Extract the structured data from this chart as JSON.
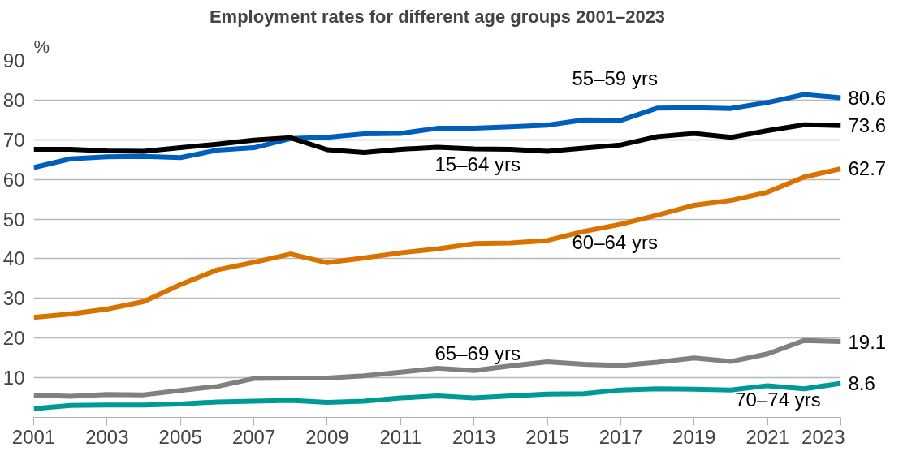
{
  "chart_data": {
    "type": "line",
    "title": "Employment rates for different age groups 2001–2023",
    "ylabel": "%",
    "x": [
      2001,
      2002,
      2003,
      2004,
      2005,
      2006,
      2007,
      2008,
      2009,
      2010,
      2011,
      2012,
      2013,
      2014,
      2015,
      2016,
      2017,
      2018,
      2019,
      2020,
      2021,
      2022,
      2023
    ],
    "series": [
      {
        "color": "#005ebc",
        "values": [
          63,
          65.2,
          65.7,
          65.8,
          65.5,
          67.4,
          68,
          70.3,
          70.6,
          71.5,
          71.6,
          72.9,
          72.9,
          73.3,
          73.7,
          75,
          74.9,
          78,
          78.1,
          77.9,
          79.4,
          81.4,
          80.6
        ],
        "value_labels": [
          null,
          null,
          null,
          null,
          null,
          null,
          null,
          null,
          null,
          null,
          null,
          null,
          null,
          null,
          null,
          null,
          null,
          null,
          null,
          null,
          null,
          null,
          "80.6"
        ]
      },
      {
        "color": "#000000",
        "values": [
          67.6,
          67.6,
          67.2,
          67.1,
          68,
          68.9,
          69.9,
          70.5,
          67.5,
          66.8,
          67.6,
          68.1,
          67.7,
          67.6,
          67.1,
          67.9,
          68.7,
          70.8,
          71.6,
          70.6,
          72.3,
          73.8,
          73.6
        ],
        "value_labels": [
          null,
          null,
          null,
          null,
          null,
          null,
          null,
          null,
          null,
          null,
          null,
          null,
          null,
          null,
          null,
          null,
          null,
          null,
          null,
          null,
          null,
          null,
          "73.6"
        ]
      },
      {
        "color": "#d97300",
        "values": [
          25.2,
          26.1,
          27.3,
          29.2,
          33.5,
          37.2,
          39.1,
          41.2,
          39,
          40.2,
          41.5,
          42.5,
          43.8,
          44,
          44.6,
          46.9,
          48.7,
          51,
          53.5,
          54.7,
          56.8,
          60.6,
          62.7
        ],
        "value_labels": [
          null,
          null,
          null,
          null,
          null,
          null,
          null,
          null,
          null,
          null,
          null,
          null,
          null,
          null,
          null,
          null,
          null,
          null,
          null,
          null,
          null,
          null,
          "62.7"
        ]
      },
      {
        "color": "#808080",
        "values": [
          5.6,
          5.3,
          5.8,
          5.7,
          6.8,
          7.8,
          9.8,
          9.9,
          9.9,
          10.5,
          11.4,
          12.4,
          11.8,
          13,
          14,
          13.4,
          13.1,
          13.9,
          15,
          14.1,
          16,
          19.4,
          19.1
        ],
        "value_labels": [
          null,
          null,
          null,
          null,
          null,
          null,
          null,
          null,
          null,
          null,
          null,
          null,
          null,
          null,
          null,
          null,
          null,
          null,
          null,
          null,
          null,
          null,
          "19.1"
        ]
      },
      {
        "color": "#009a96",
        "values": [
          2.2,
          3,
          3.1,
          3.1,
          3.4,
          3.9,
          4.1,
          4.3,
          3.8,
          4.1,
          4.9,
          5.4,
          4.9,
          5.4,
          5.9,
          6,
          6.9,
          7.2,
          7.1,
          6.9,
          8,
          7.2,
          8.6
        ],
        "value_labels": [
          null,
          null,
          null,
          null,
          null,
          null,
          null,
          null,
          null,
          null,
          null,
          null,
          null,
          null,
          null,
          null,
          null,
          null,
          null,
          null,
          null,
          null,
          "8.6"
        ]
      }
    ],
    "annotations": [
      "55–59 yrs",
      "15–64 yrs",
      "60–64 yrs",
      "65–69 yrs",
      "70–74 yrs"
    ],
    "xlim": [
      2001,
      2023
    ],
    "xticks": [
      2001,
      2003,
      2005,
      2007,
      2009,
      2011,
      2013,
      2015,
      2017,
      2019,
      2021,
      2023
    ],
    "ylim": [
      0,
      90
    ],
    "yticks": [
      10,
      20,
      30,
      40,
      50,
      60,
      70,
      80,
      90
    ],
    "grid": "y",
    "marker": "none",
    "line_style": "solid"
  }
}
